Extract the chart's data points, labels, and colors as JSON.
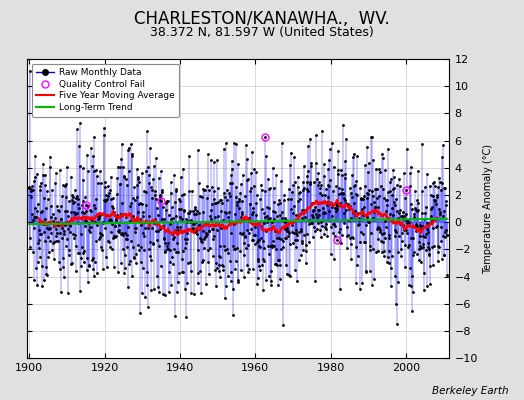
{
  "title": "CHARLESTON/KANAWHA.,  WV.",
  "subtitle": "38.372 N, 81.597 W (United States)",
  "ylabel": "Temperature Anomaly (°C)",
  "credit": "Berkeley Earth",
  "year_start": 1900,
  "year_end": 2011,
  "ylim": [
    -10,
    12
  ],
  "yticks": [
    -10,
    -8,
    -6,
    -4,
    -2,
    0,
    2,
    4,
    6,
    8,
    10,
    12
  ],
  "xticks": [
    1900,
    1920,
    1940,
    1960,
    1980,
    2000
  ],
  "bg_color": "#e0e0e0",
  "plot_bg_color": "#ffffff",
  "raw_line_color": "#0000ff",
  "raw_marker_color": "#000000",
  "moving_avg_color": "#ff0000",
  "trend_color": "#00bb00",
  "qc_color": "#ff00ff",
  "title_fontsize": 12,
  "subtitle_fontsize": 9,
  "seed": 137
}
